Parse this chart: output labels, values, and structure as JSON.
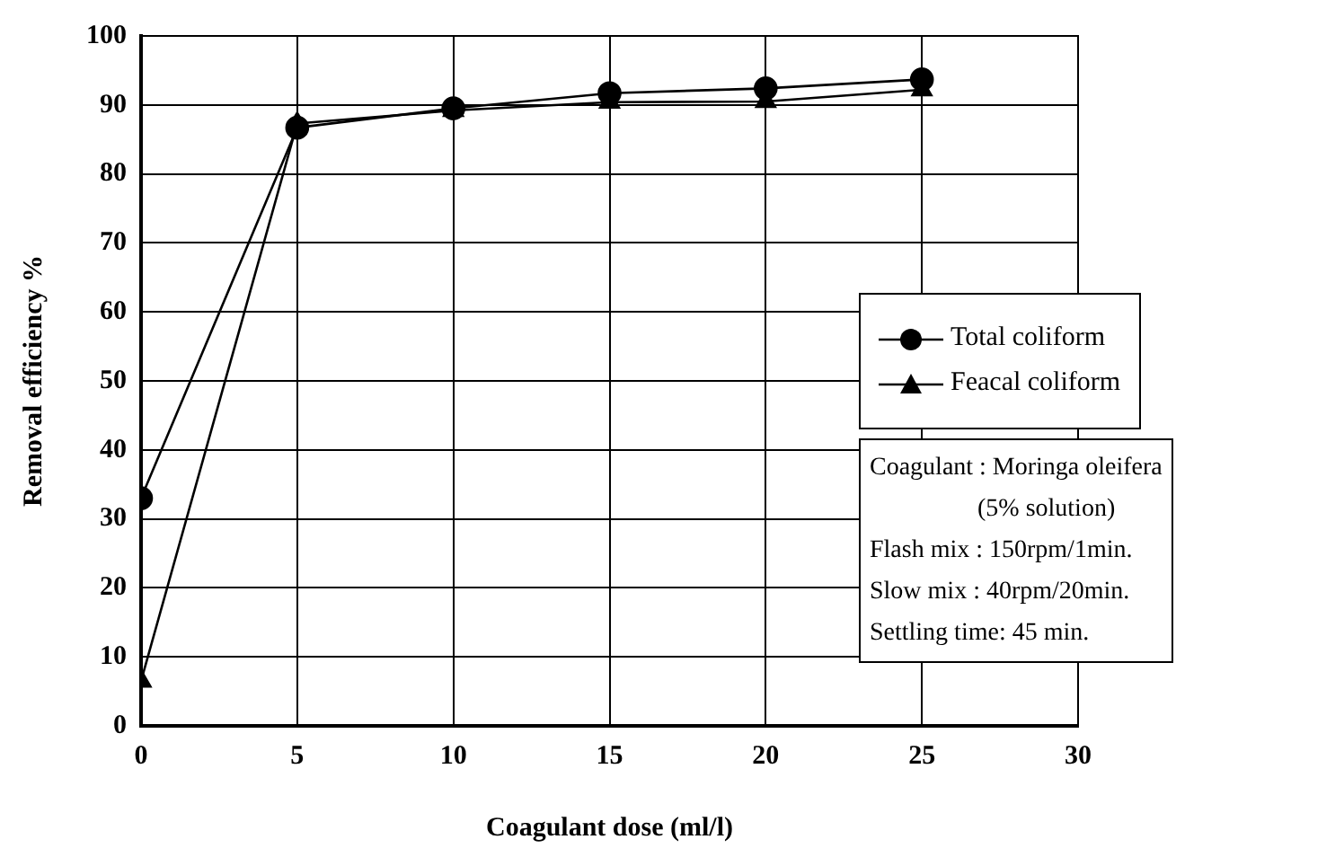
{
  "chart_data": {
    "type": "line",
    "xlabel": "Coagulant dose (ml/l)",
    "ylabel": "Removal efficiency %",
    "x": [
      0,
      5,
      10,
      15,
      20,
      25
    ],
    "series": [
      {
        "name": "Total coliform",
        "color": "#000000",
        "marker": "circle",
        "values": [
          33,
          86.7,
          89.5,
          91.7,
          92.4,
          93.7
        ]
      },
      {
        "name": "Feacal coliform",
        "color": "#000000",
        "marker": "triangle",
        "values": [
          6.5,
          87.3,
          89.2,
          90.4,
          90.5,
          92.2
        ]
      }
    ],
    "xlim": [
      0,
      30
    ],
    "xticks": [
      0,
      5,
      10,
      15,
      20,
      25,
      30
    ],
    "ylim": [
      0,
      100
    ],
    "yticks": [
      0,
      10,
      20,
      30,
      40,
      50,
      60,
      70,
      80,
      90,
      100
    ],
    "grid": true,
    "legend": "right",
    "line_style": "solid",
    "annotations": [
      "Coagulant : Moringa oleifera",
      "(5% solution)",
      "Flash mix : 150rpm/1min.",
      "Slow mix : 40rpm/20min.",
      "Settling time: 45 min."
    ]
  }
}
